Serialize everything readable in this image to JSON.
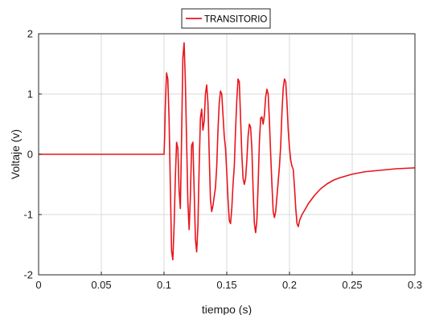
{
  "chart_data": {
    "type": "line",
    "xlabel": "tiempo (s)",
    "ylabel": "Voltaje (v)",
    "xlim": [
      0,
      0.3
    ],
    "ylim": [
      -2,
      2
    ],
    "xticks": [
      0,
      0.05,
      0.1,
      0.15,
      0.2,
      0.25,
      0.3
    ],
    "xtick_labels": [
      "0",
      "0.05",
      "0.1",
      "0.15",
      "0.2",
      "0.25",
      "0.3"
    ],
    "yticks": [
      -2,
      -1,
      0,
      1,
      2
    ],
    "ytick_labels": [
      "-2",
      "-1",
      "0",
      "1",
      "2"
    ],
    "grid": true,
    "legend_position": "top-center",
    "series": [
      {
        "name": "TRANSITORIO",
        "color": "#e8141b",
        "x": [
          0,
          0.1,
          0.1005,
          0.101,
          0.102,
          0.103,
          0.104,
          0.105,
          0.106,
          0.107,
          0.108,
          0.109,
          0.11,
          0.111,
          0.112,
          0.113,
          0.114,
          0.115,
          0.116,
          0.117,
          0.118,
          0.119,
          0.12,
          0.121,
          0.122,
          0.123,
          0.124,
          0.125,
          0.126,
          0.127,
          0.128,
          0.129,
          0.13,
          0.131,
          0.132,
          0.133,
          0.134,
          0.135,
          0.136,
          0.137,
          0.138,
          0.139,
          0.14,
          0.141,
          0.142,
          0.143,
          0.144,
          0.145,
          0.146,
          0.147,
          0.148,
          0.149,
          0.15,
          0.151,
          0.152,
          0.153,
          0.154,
          0.155,
          0.156,
          0.157,
          0.158,
          0.159,
          0.16,
          0.161,
          0.162,
          0.163,
          0.164,
          0.165,
          0.166,
          0.167,
          0.168,
          0.169,
          0.17,
          0.171,
          0.172,
          0.173,
          0.174,
          0.175,
          0.176,
          0.177,
          0.178,
          0.179,
          0.18,
          0.181,
          0.182,
          0.183,
          0.184,
          0.185,
          0.186,
          0.187,
          0.188,
          0.189,
          0.19,
          0.191,
          0.192,
          0.193,
          0.194,
          0.195,
          0.196,
          0.197,
          0.198,
          0.199,
          0.2,
          0.201,
          0.202,
          0.203,
          0.204,
          0.205,
          0.206,
          0.207,
          0.208,
          0.209,
          0.21,
          0.212,
          0.215,
          0.22,
          0.225,
          0.23,
          0.235,
          0.24,
          0.245,
          0.25,
          0.255,
          0.26,
          0.265,
          0.27,
          0.275,
          0.28,
          0.285,
          0.29,
          0.295,
          0.3
        ],
        "y": [
          0,
          0,
          0.3,
          0.8,
          1.35,
          1.25,
          0.6,
          -0.5,
          -1.6,
          -1.75,
          -1.2,
          -0.4,
          0.2,
          0.1,
          -0.6,
          -0.9,
          0.3,
          1.6,
          1.85,
          1.2,
          0.2,
          -0.8,
          -1.25,
          -0.7,
          0.15,
          0.2,
          -0.6,
          -1.4,
          -1.62,
          -1.2,
          -0.2,
          0.6,
          0.75,
          0.4,
          0.55,
          1.0,
          1.15,
          0.85,
          0.0,
          -0.75,
          -0.95,
          -0.85,
          -0.7,
          -0.55,
          -0.2,
          0.4,
          0.85,
          1.05,
          1.0,
          0.65,
          0.3,
          0.1,
          -0.3,
          -0.75,
          -1.1,
          -1.15,
          -0.9,
          -0.5,
          -0.2,
          0.4,
          0.9,
          1.25,
          1.2,
          0.6,
          0.0,
          -0.4,
          -0.5,
          -0.4,
          -0.1,
          0.3,
          0.5,
          0.45,
          0.1,
          -0.6,
          -1.15,
          -1.3,
          -1.1,
          -0.5,
          0.2,
          0.6,
          0.62,
          0.5,
          0.65,
          0.95,
          1.08,
          1.0,
          0.55,
          0.0,
          -0.5,
          -0.95,
          -1.05,
          -0.95,
          -0.7,
          -0.45,
          -0.2,
          0.15,
          0.7,
          1.1,
          1.25,
          1.2,
          0.85,
          0.4,
          0.1,
          -0.1,
          -0.2,
          -0.25,
          -0.55,
          -0.9,
          -1.15,
          -1.2,
          -1.1,
          -1.05,
          -1.0,
          -0.93,
          -0.82,
          -0.68,
          -0.57,
          -0.49,
          -0.43,
          -0.39,
          -0.36,
          -0.33,
          -0.31,
          -0.29,
          -0.28,
          -0.27,
          -0.26,
          -0.25,
          -0.24,
          -0.235,
          -0.23,
          -0.225
        ]
      }
    ]
  }
}
